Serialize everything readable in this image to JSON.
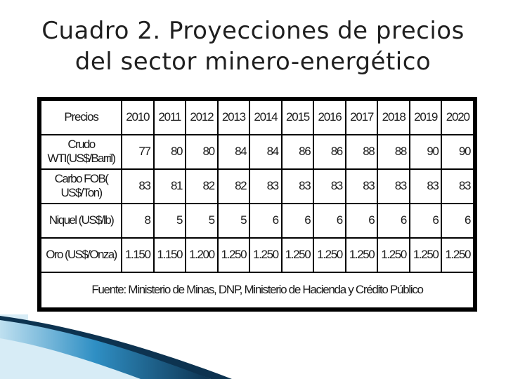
{
  "slide": {
    "title_line1": "Cuadro 2. Proyecciones de precios",
    "title_line2": "del sector minero-energético"
  },
  "table": {
    "header": {
      "label": "Precios",
      "years": [
        "2010",
        "2011",
        "2012",
        "2013",
        "2014",
        "2015",
        "2016",
        "2017",
        "2018",
        "2019",
        "2020"
      ]
    },
    "rows": [
      {
        "label": "Crudo WTI(US$/Barril)",
        "values": [
          "77",
          "80",
          "80",
          "84",
          "84",
          "86",
          "86",
          "88",
          "88",
          "90",
          "90"
        ]
      },
      {
        "label": "Carbo FOB( US$/Ton)",
        "values": [
          "83",
          "81",
          "82",
          "82",
          "83",
          "83",
          "83",
          "83",
          "83",
          "83",
          "83"
        ]
      },
      {
        "label": "Niquel (US$/lb)",
        "values": [
          "8",
          "5",
          "5",
          "5",
          "6",
          "6",
          "6",
          "6",
          "6",
          "6",
          "6"
        ]
      },
      {
        "label": "Oro (US$/Onza)",
        "values": [
          "1.150",
          "1.150",
          "1.200",
          "1.250",
          "1.250",
          "1.250",
          "1.250",
          "1.250",
          "1.250",
          "1.250",
          "1.250"
        ]
      }
    ],
    "source": "Fuente: Ministerio de Minas, DNP, Ministerio de Hacienda y Crédito Público"
  },
  "colors": {
    "title": "#1f1f1f",
    "table_border": "#000000",
    "decor_light": "#bfe0f0",
    "decor_mid": "#2f8fc4",
    "decor_dark": "#0d3350"
  }
}
